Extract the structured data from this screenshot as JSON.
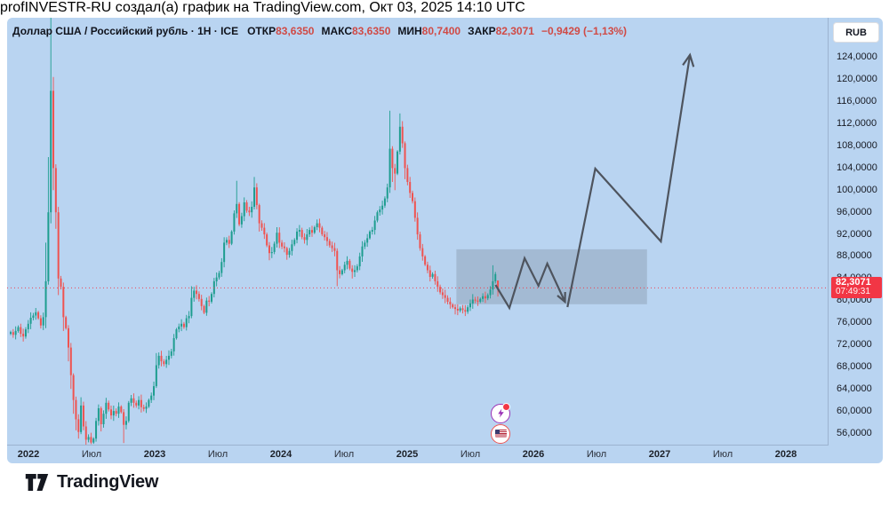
{
  "attribution": "profINVESTR-RU создал(а) график на TradingView.com, Окт 03, 2025 14:10 UTC",
  "header": {
    "symbol_line": "Доллар США / Российский рубль · 1H · ICE",
    "ohlc": [
      {
        "label": "ОТКР",
        "value": "83,6350"
      },
      {
        "label": "МАКС",
        "value": "83,6350"
      },
      {
        "label": "МИН",
        "value": "80,7400"
      },
      {
        "label": "ЗАКР",
        "value": "82,3071"
      }
    ],
    "change": "−0,9429 (−1,13%)"
  },
  "price_scale": {
    "currency_button": "RUB",
    "ticks": [
      {
        "v": 124,
        "label": "124,0000"
      },
      {
        "v": 120,
        "label": "120,0000"
      },
      {
        "v": 116,
        "label": "116,0000"
      },
      {
        "v": 112,
        "label": "112,0000"
      },
      {
        "v": 108,
        "label": "108,0000"
      },
      {
        "v": 104,
        "label": "104,0000"
      },
      {
        "v": 100,
        "label": "100,0000"
      },
      {
        "v": 96,
        "label": "96,0000"
      },
      {
        "v": 92,
        "label": "92,0000"
      },
      {
        "v": 88,
        "label": "88,0000"
      },
      {
        "v": 84,
        "label": "84,0000"
      },
      {
        "v": 80,
        "label": "80,0000"
      },
      {
        "v": 76,
        "label": "76,0000"
      },
      {
        "v": 72,
        "label": "72,0000"
      },
      {
        "v": 68,
        "label": "68,0000"
      },
      {
        "v": 64,
        "label": "64,0000"
      },
      {
        "v": 60,
        "label": "60,0000"
      },
      {
        "v": 56,
        "label": "56,0000"
      }
    ],
    "last_price": {
      "v": 82.3071,
      "value": "82,3071",
      "countdown": "07:49:31"
    }
  },
  "time_scale": {
    "ticks": [
      {
        "t": 2022.0,
        "label": "2022",
        "major": true
      },
      {
        "t": 2022.5,
        "label": "Июл",
        "major": false
      },
      {
        "t": 2023.0,
        "label": "2023",
        "major": true
      },
      {
        "t": 2023.5,
        "label": "Июл",
        "major": false
      },
      {
        "t": 2024.0,
        "label": "2024",
        "major": true
      },
      {
        "t": 2024.5,
        "label": "Июл",
        "major": false
      },
      {
        "t": 2025.0,
        "label": "2025",
        "major": true
      },
      {
        "t": 2025.5,
        "label": "Июл",
        "major": false
      },
      {
        "t": 2026.0,
        "label": "2026",
        "major": true
      },
      {
        "t": 2026.5,
        "label": "Июл",
        "major": false
      },
      {
        "t": 2027.0,
        "label": "2027",
        "major": true
      },
      {
        "t": 2027.5,
        "label": "Июл",
        "major": false
      },
      {
        "t": 2028.0,
        "label": "2028",
        "major": true
      }
    ]
  },
  "chart_data": {
    "type": "candlestick",
    "title": "Доллар США / Российский рубль, 1H, ICE",
    "ylabel": "RUB",
    "ylim": [
      53.5,
      131.5
    ],
    "xlim_years": [
      2021.86,
      2028.3
    ],
    "grid": false,
    "first_open": 74.0,
    "closes": [
      74.3,
      73.8,
      74.5,
      75.2,
      74.0,
      73.5,
      74.8,
      75.8,
      76.9,
      77.3,
      77.9,
      76.8,
      75.5,
      77.0,
      83.5,
      96.0,
      118.0,
      104.0,
      96.0,
      84.0,
      82.5,
      77.0,
      75.0,
      71.5,
      66.5,
      62.0,
      58.5,
      56.2,
      61.0,
      57.2,
      54.8,
      55.3,
      54.3,
      55.0,
      58.2,
      60.5,
      57.6,
      59.5,
      61.5,
      60.3,
      59.2,
      60.0,
      59.5,
      60.8,
      59.8,
      57.5,
      58.2,
      61.5,
      62.3,
      61.5,
      61.0,
      62.0,
      60.7,
      60.4,
      60.8,
      62.0,
      62.8,
      64.5,
      68.3,
      70.0,
      69.0,
      68.5,
      69.3,
      70.0,
      70.8,
      73.2,
      74.8,
      75.3,
      75.8,
      75.2,
      76.8,
      77.2,
      80.5,
      81.8,
      81.2,
      80.3,
      79.0,
      77.8,
      80.0,
      79.8,
      81.2,
      83.5,
      84.2,
      85.0,
      87.0,
      90.5,
      91.0,
      90.3,
      92.5,
      95.8,
      97.5,
      93.8,
      95.3,
      97.8,
      96.3,
      96.0,
      97.0,
      100.5,
      97.3,
      94.0,
      93.2,
      92.0,
      90.0,
      88.6,
      88.8,
      90.3,
      92.3,
      90.5,
      89.8,
      89.5,
      88.3,
      89.0,
      90.2,
      91.0,
      92.5,
      92.8,
      91.5,
      91.0,
      92.0,
      92.8,
      92.3,
      93.3,
      94.0,
      93.2,
      92.0,
      91.5,
      90.8,
      90.0,
      89.5,
      89.0,
      85.5,
      84.8,
      85.5,
      86.5,
      87.2,
      85.8,
      85.2,
      85.5,
      86.2,
      88.0,
      89.8,
      90.5,
      91.3,
      92.5,
      92.8,
      94.5,
      96.0,
      96.5,
      97.2,
      98.5,
      100.5,
      107.5,
      104.0,
      103.0,
      107.0,
      111.5,
      108.5,
      104.0,
      101.5,
      99.5,
      98.0,
      95.0,
      92.0,
      89.5,
      88.0,
      86.5,
      85.5,
      84.3,
      84.8,
      83.5,
      82.5,
      81.5,
      81.0,
      80.5,
      79.8,
      79.3,
      78.8,
      78.5,
      78.2,
      78.6,
      78.3,
      78.0,
      78.8,
      79.5,
      80.2,
      80.0,
      79.8,
      80.3,
      80.8,
      80.4,
      81.0,
      82.0,
      83.5,
      84.8,
      82.3071
    ],
    "wick_overrides": {
      "14": {
        "h": 90.5,
        "l": 75.0
      },
      "15": {
        "h": 106
      },
      "16": {
        "h": 131.5,
        "l": 94
      },
      "17": {
        "h": 120.5,
        "l": 100
      },
      "18": {
        "l": 93
      },
      "19": {
        "l": 81
      },
      "21": {
        "l": 74.5
      },
      "23": {
        "l": 69
      },
      "24": {
        "l": 64
      },
      "25": {
        "l": 59.5
      },
      "26": {
        "l": 56.5
      },
      "27": {
        "l": 55
      },
      "28": {
        "h": 62.5
      },
      "30": {
        "l": 53.9
      },
      "32": {
        "l": 54
      },
      "35": {
        "h": 61.2
      },
      "36": {
        "l": 56.3
      },
      "45": {
        "l": 54.2
      },
      "58": {
        "h": 70.5
      },
      "72": {
        "h": 82.6
      },
      "90": {
        "h": 101.7
      },
      "97": {
        "h": 102.4
      },
      "99": {
        "l": 92.5
      },
      "103": {
        "l": 87.3
      },
      "106": {
        "h": 93.3
      },
      "110": {
        "l": 87.4
      },
      "122": {
        "h": 94.7
      },
      "130": {
        "l": 82.6
      },
      "136": {
        "l": 84
      },
      "151": {
        "h": 114.4,
        "l": 99.5
      },
      "152": {
        "l": 101.5
      },
      "153": {
        "l": 100
      },
      "155": {
        "h": 113.9
      },
      "156": {
        "h": 112.5
      },
      "157": {
        "l": 102
      },
      "177": {
        "l": 77.5
      },
      "181": {
        "l": 77.2
      },
      "192": {
        "h": 86.4
      },
      "194": {
        "o": 83.635,
        "h": 83.635,
        "l": 80.74
      }
    },
    "current_price": 82.3071,
    "projection": {
      "box": {
        "t1": 2025.39,
        "t2": 2026.9,
        "p_top": 89.3,
        "p_bottom": 79.35
      },
      "zigzag": [
        [
          2025.7,
          82.85
        ],
        [
          2025.81,
          78.67
        ],
        [
          2025.93,
          87.67
        ],
        [
          2026.04,
          82.68
        ],
        [
          2026.11,
          86.71
        ],
        [
          2026.25,
          79.79
        ]
      ],
      "impulse": [
        [
          2026.27,
          78.83
        ],
        [
          2026.49,
          103.9
        ],
        [
          2027.01,
          90.73
        ],
        [
          2027.24,
          124.5
        ]
      ]
    },
    "events": [
      {
        "icon": "lightning-event-icon",
        "t": 2025.74,
        "p": 59.6
      },
      {
        "icon": "us-flag-event-icon",
        "t": 2025.74,
        "p": 55.9
      }
    ]
  },
  "footer": {
    "brand": "TradingView"
  },
  "colors": {
    "card_bg": "#b9d4f1",
    "candle_up": "#1d9d8f",
    "candle_down": "#ef5350",
    "price_line_red": "#f23645",
    "drawing_gray": "#4e545e",
    "box_fill": "rgba(108,119,132,0.28)",
    "text_dark": "#131722"
  }
}
